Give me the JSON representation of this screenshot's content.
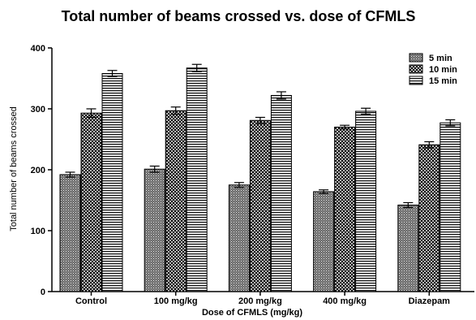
{
  "chart_data": {
    "type": "bar",
    "title": "Total number of beams crossed vs. dose of CFMLS",
    "xlabel": "Dose of CFMLS (mg/kg)",
    "ylabel": "Total number of beams crossed",
    "categories": [
      "Control",
      "100 mg/kg",
      "200 mg/kg",
      "400 mg/kg",
      "Diazepam"
    ],
    "series": [
      {
        "name": "5 min",
        "values": [
          192,
          201,
          175,
          164,
          142
        ],
        "errors": [
          4,
          5,
          4,
          3,
          4
        ]
      },
      {
        "name": "10 min",
        "values": [
          293,
          297,
          281,
          270,
          241
        ],
        "errors": [
          7,
          6,
          5,
          3,
          5
        ]
      },
      {
        "name": "15 min",
        "values": [
          358,
          367,
          322,
          296,
          277
        ],
        "errors": [
          5,
          6,
          6,
          5,
          5
        ]
      }
    ],
    "ylim": [
      0,
      400
    ],
    "yticks": [
      0,
      100,
      200,
      300,
      400
    ],
    "grid": false,
    "legend_position": "top-right"
  }
}
